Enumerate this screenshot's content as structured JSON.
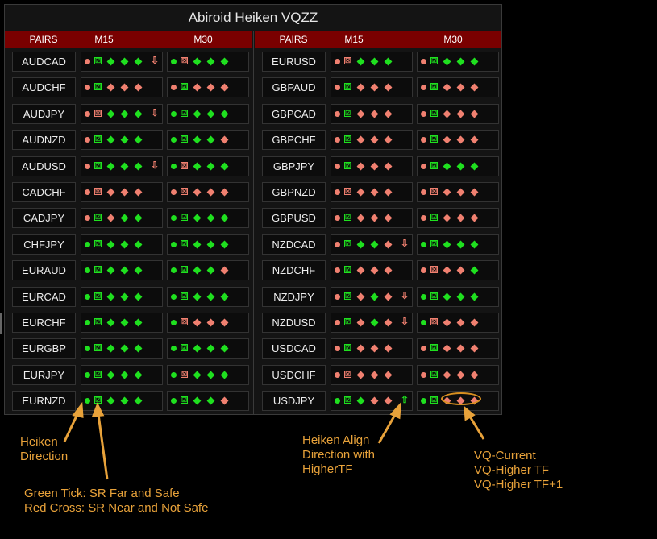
{
  "title": "Abiroid Heiken VQZZ",
  "headers": {
    "pairs": "PAIRS",
    "m15": "M15",
    "m30": "M30"
  },
  "colors": {
    "green": "#1fe01f",
    "red": "#f08070",
    "header_bg": "#7a0000",
    "annotation": "#e8a23a"
  },
  "icons": {
    "tick": "☑",
    "cross": "☒",
    "up_arrow": "⇧",
    "down_arrow": "⇩",
    "diamond": "◆",
    "dot": "●"
  },
  "left_rows": [
    {
      "pair": "AUDCAD",
      "m15": {
        "dot": "r",
        "box": "g",
        "d": [
          "g",
          "g",
          "g"
        ],
        "arrow": "down"
      },
      "m30": {
        "dot": "g",
        "box": "r",
        "d": [
          "g",
          "g",
          "g"
        ]
      }
    },
    {
      "pair": "AUDCHF",
      "m15": {
        "dot": "r",
        "box": "g",
        "d": [
          "r",
          "r",
          "r"
        ]
      },
      "m30": {
        "dot": "r",
        "box": "g",
        "d": [
          "r",
          "r",
          "r"
        ]
      }
    },
    {
      "pair": "AUDJPY",
      "m15": {
        "dot": "r",
        "box": "r",
        "d": [
          "g",
          "g",
          "g"
        ],
        "arrow": "down"
      },
      "m30": {
        "dot": "g",
        "box": "g",
        "d": [
          "g",
          "g",
          "g"
        ]
      }
    },
    {
      "pair": "AUDNZD",
      "m15": {
        "dot": "r",
        "box": "g",
        "d": [
          "g",
          "g",
          "g"
        ]
      },
      "m30": {
        "dot": "g",
        "box": "g",
        "d": [
          "g",
          "g",
          "r"
        ]
      }
    },
    {
      "pair": "AUDUSD",
      "m15": {
        "dot": "r",
        "box": "g",
        "d": [
          "g",
          "g",
          "g"
        ],
        "arrow": "down"
      },
      "m30": {
        "dot": "g",
        "box": "r",
        "d": [
          "g",
          "g",
          "g"
        ]
      }
    },
    {
      "pair": "CADCHF",
      "m15": {
        "dot": "r",
        "box": "r",
        "d": [
          "r",
          "r",
          "r"
        ]
      },
      "m30": {
        "dot": "r",
        "box": "r",
        "d": [
          "r",
          "r",
          "r"
        ]
      }
    },
    {
      "pair": "CADJPY",
      "m15": {
        "dot": "r",
        "box": "g",
        "d": [
          "r",
          "g",
          "g"
        ]
      },
      "m30": {
        "dot": "g",
        "box": "g",
        "d": [
          "g",
          "g",
          "g"
        ]
      }
    },
    {
      "pair": "CHFJPY",
      "m15": {
        "dot": "g",
        "box": "g",
        "d": [
          "g",
          "g",
          "g"
        ]
      },
      "m30": {
        "dot": "g",
        "box": "g",
        "d": [
          "g",
          "g",
          "g"
        ]
      }
    },
    {
      "pair": "EURAUD",
      "m15": {
        "dot": "g",
        "box": "g",
        "d": [
          "g",
          "g",
          "g"
        ]
      },
      "m30": {
        "dot": "g",
        "box": "g",
        "d": [
          "g",
          "g",
          "r"
        ]
      }
    },
    {
      "pair": "EURCAD",
      "m15": {
        "dot": "g",
        "box": "g",
        "d": [
          "g",
          "g",
          "g"
        ]
      },
      "m30": {
        "dot": "g",
        "box": "g",
        "d": [
          "g",
          "g",
          "g"
        ]
      }
    },
    {
      "pair": "EURCHF",
      "m15": {
        "dot": "g",
        "box": "g",
        "d": [
          "g",
          "g",
          "g"
        ]
      },
      "m30": {
        "dot": "g",
        "box": "r",
        "d": [
          "r",
          "r",
          "r"
        ]
      }
    },
    {
      "pair": "EURGBP",
      "m15": {
        "dot": "g",
        "box": "g",
        "d": [
          "g",
          "g",
          "g"
        ]
      },
      "m30": {
        "dot": "g",
        "box": "g",
        "d": [
          "g",
          "g",
          "g"
        ]
      }
    },
    {
      "pair": "EURJPY",
      "m15": {
        "dot": "g",
        "box": "g",
        "d": [
          "g",
          "g",
          "g"
        ]
      },
      "m30": {
        "dot": "g",
        "box": "r",
        "d": [
          "g",
          "g",
          "g"
        ]
      }
    },
    {
      "pair": "EURNZD",
      "m15": {
        "dot": "g",
        "box": "g",
        "d": [
          "g",
          "g",
          "g"
        ]
      },
      "m30": {
        "dot": "g",
        "box": "g",
        "d": [
          "g",
          "g",
          "r"
        ]
      }
    }
  ],
  "right_rows": [
    {
      "pair": "EURUSD",
      "m15": {
        "dot": "r",
        "box": "r",
        "d": [
          "g",
          "g",
          "g"
        ]
      },
      "m30": {
        "dot": "r",
        "box": "g",
        "d": [
          "g",
          "g",
          "g"
        ]
      }
    },
    {
      "pair": "GBPAUD",
      "m15": {
        "dot": "r",
        "box": "g",
        "d": [
          "r",
          "r",
          "r"
        ]
      },
      "m30": {
        "dot": "r",
        "box": "g",
        "d": [
          "r",
          "r",
          "r"
        ]
      }
    },
    {
      "pair": "GBPCAD",
      "m15": {
        "dot": "r",
        "box": "g",
        "d": [
          "r",
          "r",
          "r"
        ]
      },
      "m30": {
        "dot": "r",
        "box": "g",
        "d": [
          "r",
          "r",
          "r"
        ]
      }
    },
    {
      "pair": "GBPCHF",
      "m15": {
        "dot": "r",
        "box": "g",
        "d": [
          "r",
          "r",
          "r"
        ]
      },
      "m30": {
        "dot": "r",
        "box": "g",
        "d": [
          "r",
          "r",
          "r"
        ]
      }
    },
    {
      "pair": "GBPJPY",
      "m15": {
        "dot": "r",
        "box": "g",
        "d": [
          "r",
          "r",
          "r"
        ]
      },
      "m30": {
        "dot": "r",
        "box": "g",
        "d": [
          "g",
          "g",
          "g"
        ]
      }
    },
    {
      "pair": "GBPNZD",
      "m15": {
        "dot": "r",
        "box": "r",
        "d": [
          "r",
          "r",
          "r"
        ]
      },
      "m30": {
        "dot": "r",
        "box": "r",
        "d": [
          "r",
          "r",
          "r"
        ]
      }
    },
    {
      "pair": "GBPUSD",
      "m15": {
        "dot": "r",
        "box": "g",
        "d": [
          "r",
          "r",
          "r"
        ]
      },
      "m30": {
        "dot": "r",
        "box": "g",
        "d": [
          "r",
          "r",
          "r"
        ]
      }
    },
    {
      "pair": "NZDCAD",
      "m15": {
        "dot": "r",
        "box": "g",
        "d": [
          "g",
          "g",
          "r"
        ],
        "arrow": "down"
      },
      "m30": {
        "dot": "g",
        "box": "g",
        "d": [
          "g",
          "g",
          "g"
        ]
      }
    },
    {
      "pair": "NZDCHF",
      "m15": {
        "dot": "r",
        "box": "g",
        "d": [
          "r",
          "r",
          "r"
        ]
      },
      "m30": {
        "dot": "r",
        "box": "r",
        "d": [
          "r",
          "r",
          "g"
        ]
      }
    },
    {
      "pair": "NZDJPY",
      "m15": {
        "dot": "r",
        "box": "g",
        "d": [
          "r",
          "g",
          "r"
        ],
        "arrow": "down"
      },
      "m30": {
        "dot": "g",
        "box": "g",
        "d": [
          "g",
          "g",
          "g"
        ]
      }
    },
    {
      "pair": "NZDUSD",
      "m15": {
        "dot": "r",
        "box": "g",
        "d": [
          "r",
          "g",
          "r"
        ],
        "arrow": "down"
      },
      "m30": {
        "dot": "g",
        "box": "r",
        "d": [
          "r",
          "r",
          "r"
        ]
      }
    },
    {
      "pair": "USDCAD",
      "m15": {
        "dot": "r",
        "box": "g",
        "d": [
          "r",
          "r",
          "r"
        ]
      },
      "m30": {
        "dot": "r",
        "box": "g",
        "d": [
          "r",
          "r",
          "r"
        ]
      }
    },
    {
      "pair": "USDCHF",
      "m15": {
        "dot": "r",
        "box": "r",
        "d": [
          "r",
          "r",
          "r"
        ]
      },
      "m30": {
        "dot": "r",
        "box": "g",
        "d": [
          "r",
          "r",
          "r"
        ]
      }
    },
    {
      "pair": "USDJPY",
      "m15": {
        "dot": "g",
        "box": "g",
        "d": [
          "g",
          "r",
          "r"
        ],
        "arrow": "up"
      },
      "m30": {
        "dot": "g",
        "box": "g",
        "d": [
          "r",
          "r",
          "r"
        ]
      }
    }
  ],
  "annotations": {
    "heiken_direction": "Heiken\nDirection",
    "sr": "Green Tick: SR Far and Safe\nRed Cross: SR Near and Not Safe",
    "align": "Heiken Align\nDirection with\nHigherTF",
    "vq": "VQ-Current\nVQ-Higher TF\nVQ-Higher TF+1"
  }
}
